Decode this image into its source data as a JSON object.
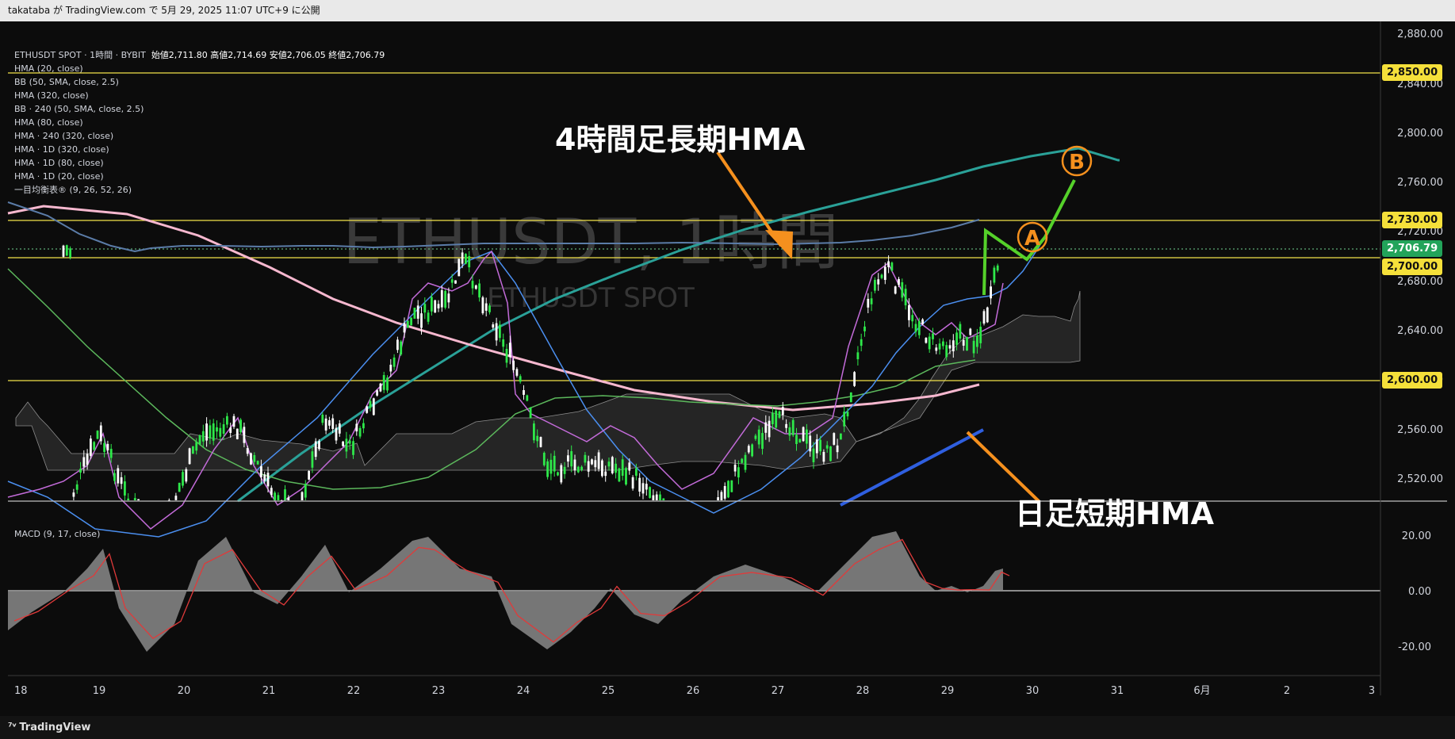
{
  "header": {
    "publish_line": "takataba が TradingView.com で 5月 29, 2025 11:07 UTC+9 に公開"
  },
  "legend": {
    "symbol": "ETHUSDT SPOT · 1時間 · BYBIT",
    "ohlc": "始値2,711.80 高値2,714.69 安値2,706.05 終値2,706.79",
    "indicators": [
      "HMA (20, close)",
      "BB (50, SMA, close, 2.5)",
      "HMA (320, close)",
      "BB · 240 (50, SMA, close, 2.5)",
      "HMA (80, close)",
      "HMA · 240 (320, close)",
      "HMA · 1D (320, close)",
      "HMA · 1D (80, close)",
      "HMA · 1D (20, close)",
      "一目均衡表® (9, 26, 52, 26)"
    ]
  },
  "watermark": {
    "main": "ETHUSDT, 1時間",
    "sub": "ETHUSDT SPOT"
  },
  "price_axis": {
    "ticks": [
      "2,880.00",
      "2,840.00",
      "2,800.00",
      "2,760.00",
      "2,720.00",
      "2,680.00",
      "2,640.00",
      "2,600.00",
      "2,560.00",
      "2,520.00"
    ],
    "tags": {
      "level_2850": "2,850.00",
      "level_2730": "2,730.00",
      "last_price": "2,706.79",
      "level_2700": "2,700.00",
      "level_2600": "2,600.00"
    }
  },
  "time_axis": {
    "labels": [
      "18",
      "19",
      "20",
      "21",
      "22",
      "23",
      "24",
      "25",
      "26",
      "27",
      "28",
      "29",
      "30",
      "31",
      "6月",
      "2",
      "3"
    ]
  },
  "macd": {
    "label": "MACD (9, 17, close)",
    "ticks": [
      "20.00",
      "0.00",
      "-20.00"
    ]
  },
  "annotations": {
    "top_text": "4時間足長期HMA",
    "bottom_text": "日足短期HMA",
    "marker_a": "A",
    "marker_b": "B"
  },
  "footer": {
    "brand": "TradingView"
  },
  "colors": {
    "candle_up": "#2ee84a",
    "candle_down": "#ffffff",
    "hma_teal": "#2aa198",
    "hma_pink": "#f7b8cf",
    "hma_blue_slate": "#5b7ca8",
    "hma_light_blue": "#4b8ff0",
    "hma_magenta": "#c36bd9",
    "hma_green": "#5cb85c",
    "trend_blue": "#2f5fe0",
    "hline_yellow": "#f2e24a",
    "tag_yellow": "#f5e03a",
    "tag_green": "#22a45a",
    "arrow_orange": "#f5901e",
    "projection_green": "#55d12a",
    "macd_fill": "#8a8a8a",
    "macd_signal": "#e03a3a"
  }
}
